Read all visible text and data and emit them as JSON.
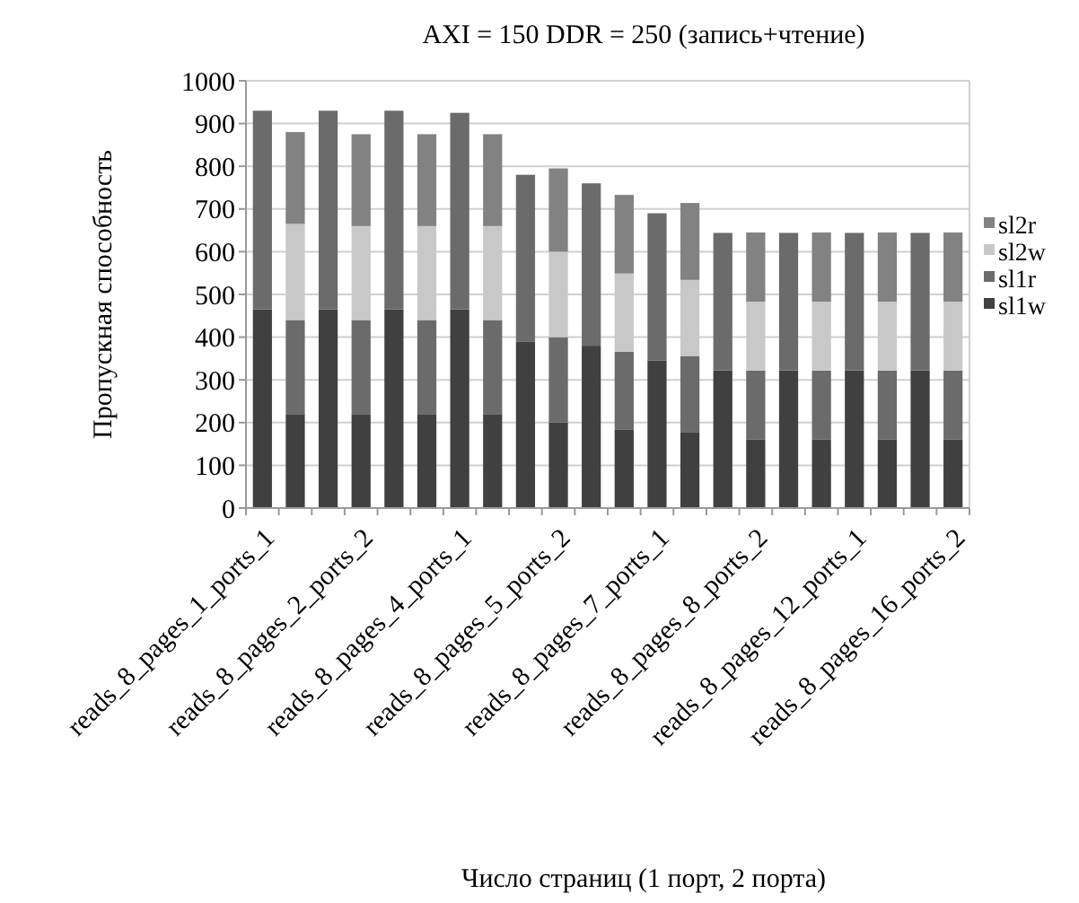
{
  "chart_data": {
    "type": "bar",
    "title": "AXI = 150 DDR = 250 (запись+чтение)",
    "xlabel": "Число страниц (1 порт, 2 порта)",
    "ylabel": "Пропускная способность",
    "categories": [
      "reads_8_pages_1_ports_1",
      null,
      null,
      "reads_8_pages_2_ports_2",
      null,
      null,
      "reads_8_pages_4_ports_1",
      null,
      null,
      "reads_8_pages_5_ports_2",
      null,
      null,
      "reads_8_pages_7_ports_1",
      null,
      null,
      "reads_8_pages_8_ports_2",
      null,
      null,
      "reads_8_pages_12_ports_1",
      null,
      null,
      "reads_8_pages_16_ports_2"
    ],
    "stacked": true,
    "ylim": [
      0,
      1000
    ],
    "yticks": [
      0,
      100,
      200,
      300,
      400,
      500,
      600,
      700,
      800,
      900,
      1000
    ],
    "grid": "y",
    "legend": "right",
    "series": [
      {
        "name": "sl1w",
        "color": "#404040",
        "values": [
          465,
          220,
          465,
          220,
          465,
          220,
          465,
          220,
          390,
          200,
          380,
          183,
          345,
          178,
          322,
          161,
          322,
          161,
          322,
          161,
          322,
          161
        ]
      },
      {
        "name": "sl1r",
        "color": "#6b6b6b",
        "values": [
          465,
          220,
          465,
          220,
          465,
          220,
          460,
          220,
          390,
          200,
          380,
          183,
          345,
          178,
          322,
          161,
          322,
          161,
          322,
          161,
          322,
          161
        ]
      },
      {
        "name": "sl2w",
        "color": "#c8c8c8",
        "values": [
          null,
          225,
          null,
          220,
          null,
          220,
          null,
          220,
          null,
          200,
          null,
          183,
          null,
          178,
          null,
          161,
          null,
          161,
          null,
          161,
          null,
          161
        ]
      },
      {
        "name": "sl2r",
        "color": "#828282",
        "values": [
          null,
          215,
          null,
          215,
          null,
          215,
          null,
          215,
          null,
          195,
          null,
          184,
          null,
          180,
          null,
          162,
          null,
          162,
          null,
          162,
          null,
          162
        ]
      }
    ]
  }
}
